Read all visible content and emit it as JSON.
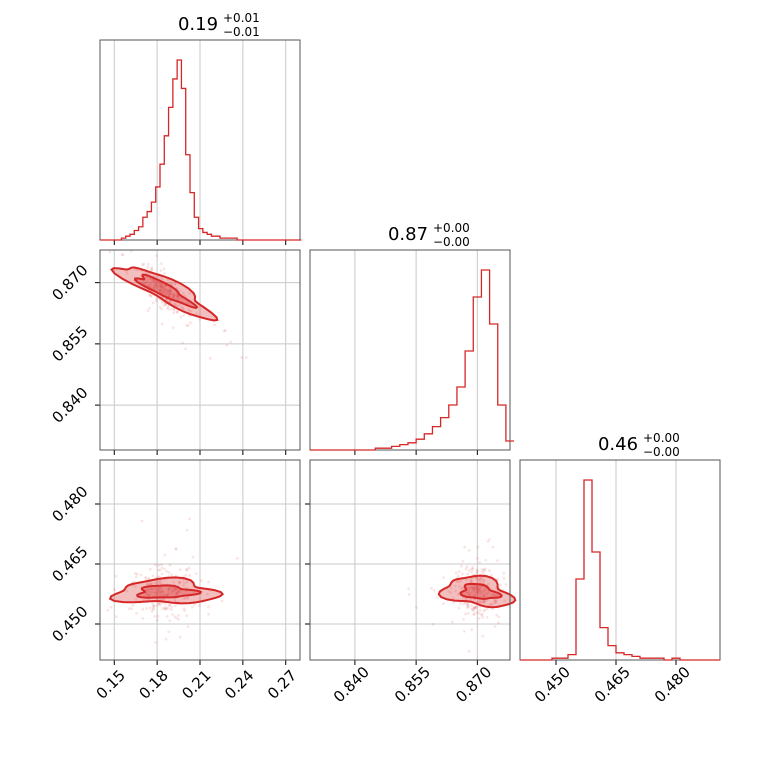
{
  "chart_data": [
    {
      "type": "histogram",
      "panel": "diag-1",
      "title_value": "0.19",
      "title_plus": "+0.01",
      "title_minus": "−0.01",
      "xlim": [
        0.14,
        0.28
      ],
      "xticks": [
        0.15,
        0.18,
        0.21,
        0.24,
        0.27
      ],
      "x": [
        0.14,
        0.143,
        0.146,
        0.149,
        0.152,
        0.155,
        0.158,
        0.161,
        0.164,
        0.167,
        0.17,
        0.173,
        0.176,
        0.179,
        0.182,
        0.185,
        0.188,
        0.191,
        0.194,
        0.197,
        0.2,
        0.203,
        0.206,
        0.209,
        0.212,
        0.215,
        0.218,
        0.221,
        0.224,
        0.227,
        0.23,
        0.233,
        0.236,
        0.239,
        0.242,
        0.245,
        0.248,
        0.251,
        0.254,
        0.257,
        0.26,
        0.263,
        0.266,
        0.269,
        0.272,
        0.275,
        0.278
      ],
      "counts": [
        0,
        0,
        0,
        0,
        0,
        1,
        2,
        3,
        5,
        7,
        12,
        15,
        20,
        28,
        40,
        55,
        70,
        85,
        95,
        80,
        45,
        25,
        12,
        6,
        4,
        3,
        2,
        2,
        1,
        1,
        1,
        1,
        0,
        0,
        0,
        0,
        0,
        0,
        0,
        0,
        0,
        0,
        0,
        0,
        0,
        0,
        0
      ],
      "color": "#d62728"
    },
    {
      "type": "scatter",
      "panel": "x1-vs-x2",
      "xlim": [
        0.14,
        0.28
      ],
      "ylim": [
        0.829,
        0.878
      ],
      "xticks": [
        0.15,
        0.18,
        0.21,
        0.24,
        0.27
      ],
      "yticks": [
        0.84,
        0.855,
        0.87
      ],
      "color": "#d62728"
    },
    {
      "type": "histogram",
      "panel": "diag-2",
      "title_value": "0.87",
      "title_plus": "+0.00",
      "title_minus": "−0.00",
      "xlim": [
        0.829,
        0.878
      ],
      "xticks": [
        0.84,
        0.855,
        0.87
      ],
      "x": [
        0.829,
        0.831,
        0.833,
        0.835,
        0.837,
        0.839,
        0.841,
        0.843,
        0.845,
        0.847,
        0.849,
        0.851,
        0.853,
        0.855,
        0.857,
        0.859,
        0.861,
        0.863,
        0.865,
        0.867,
        0.869,
        0.871,
        0.873,
        0.875,
        0.877
      ],
      "counts": [
        0,
        0,
        0,
        0,
        0,
        0,
        0,
        0,
        1,
        1,
        2,
        3,
        4,
        6,
        9,
        13,
        18,
        25,
        35,
        55,
        85,
        100,
        70,
        25,
        5
      ],
      "color": "#d62728"
    },
    {
      "type": "scatter",
      "panel": "x1-vs-x3",
      "xlim": [
        0.14,
        0.28
      ],
      "ylim": [
        0.441,
        0.491
      ],
      "xticks": [
        0.15,
        0.18,
        0.21,
        0.24,
        0.27
      ],
      "yticks": [
        0.45,
        0.465,
        0.48
      ],
      "color": "#d62728"
    },
    {
      "type": "scatter",
      "panel": "x2-vs-x3",
      "xlim": [
        0.829,
        0.878
      ],
      "ylim": [
        0.441,
        0.491
      ],
      "xticks": [
        0.84,
        0.855,
        0.87
      ],
      "yticks": [
        0.45,
        0.465,
        0.48
      ],
      "color": "#d62728"
    },
    {
      "type": "histogram",
      "panel": "diag-3",
      "title_value": "0.46",
      "title_plus": "+0.00",
      "title_minus": "−0.00",
      "xlim": [
        0.441,
        0.491
      ],
      "xticks": [
        0.45,
        0.465,
        0.48
      ],
      "x": [
        0.441,
        0.443,
        0.445,
        0.447,
        0.449,
        0.451,
        0.453,
        0.455,
        0.457,
        0.459,
        0.461,
        0.463,
        0.465,
        0.467,
        0.469,
        0.471,
        0.473,
        0.475,
        0.477,
        0.479,
        0.481,
        0.483,
        0.485,
        0.487,
        0.489
      ],
      "counts": [
        0,
        0,
        0,
        0,
        1,
        1,
        3,
        45,
        100,
        60,
        18,
        8,
        4,
        3,
        2,
        1,
        1,
        1,
        0,
        1,
        0,
        0,
        0,
        0,
        0
      ],
      "color": "#d62728"
    }
  ]
}
